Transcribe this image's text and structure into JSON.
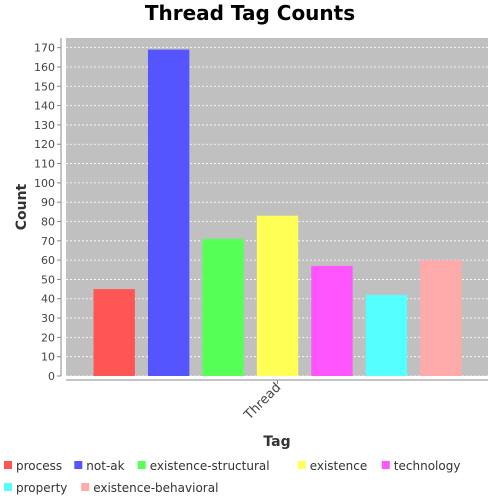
{
  "chart_data": {
    "type": "bar",
    "title": "Thread Tag Counts",
    "xlabel": "Tag",
    "ylabel": "Count",
    "categories": [
      "Thread"
    ],
    "ylim": [
      0,
      175
    ],
    "yticks": [
      0,
      10,
      20,
      30,
      40,
      50,
      60,
      70,
      80,
      90,
      100,
      110,
      120,
      130,
      140,
      150,
      160,
      170
    ],
    "grid": true,
    "legend_position": "bottom",
    "plot_background": "#c0c0c0",
    "series": [
      {
        "name": "process",
        "values": [
          45
        ],
        "color": "#ff5555"
      },
      {
        "name": "not-ak",
        "values": [
          169
        ],
        "color": "#5555ff"
      },
      {
        "name": "existence-structural",
        "values": [
          71
        ],
        "color": "#55ff55"
      },
      {
        "name": "existence",
        "values": [
          83
        ],
        "color": "#ffff55"
      },
      {
        "name": "technology",
        "values": [
          57
        ],
        "color": "#ff55ff"
      },
      {
        "name": "property",
        "values": [
          42
        ],
        "color": "#55ffff"
      },
      {
        "name": "existence-behavioral",
        "values": [
          60
        ],
        "color": "#ffaaaa"
      }
    ]
  }
}
